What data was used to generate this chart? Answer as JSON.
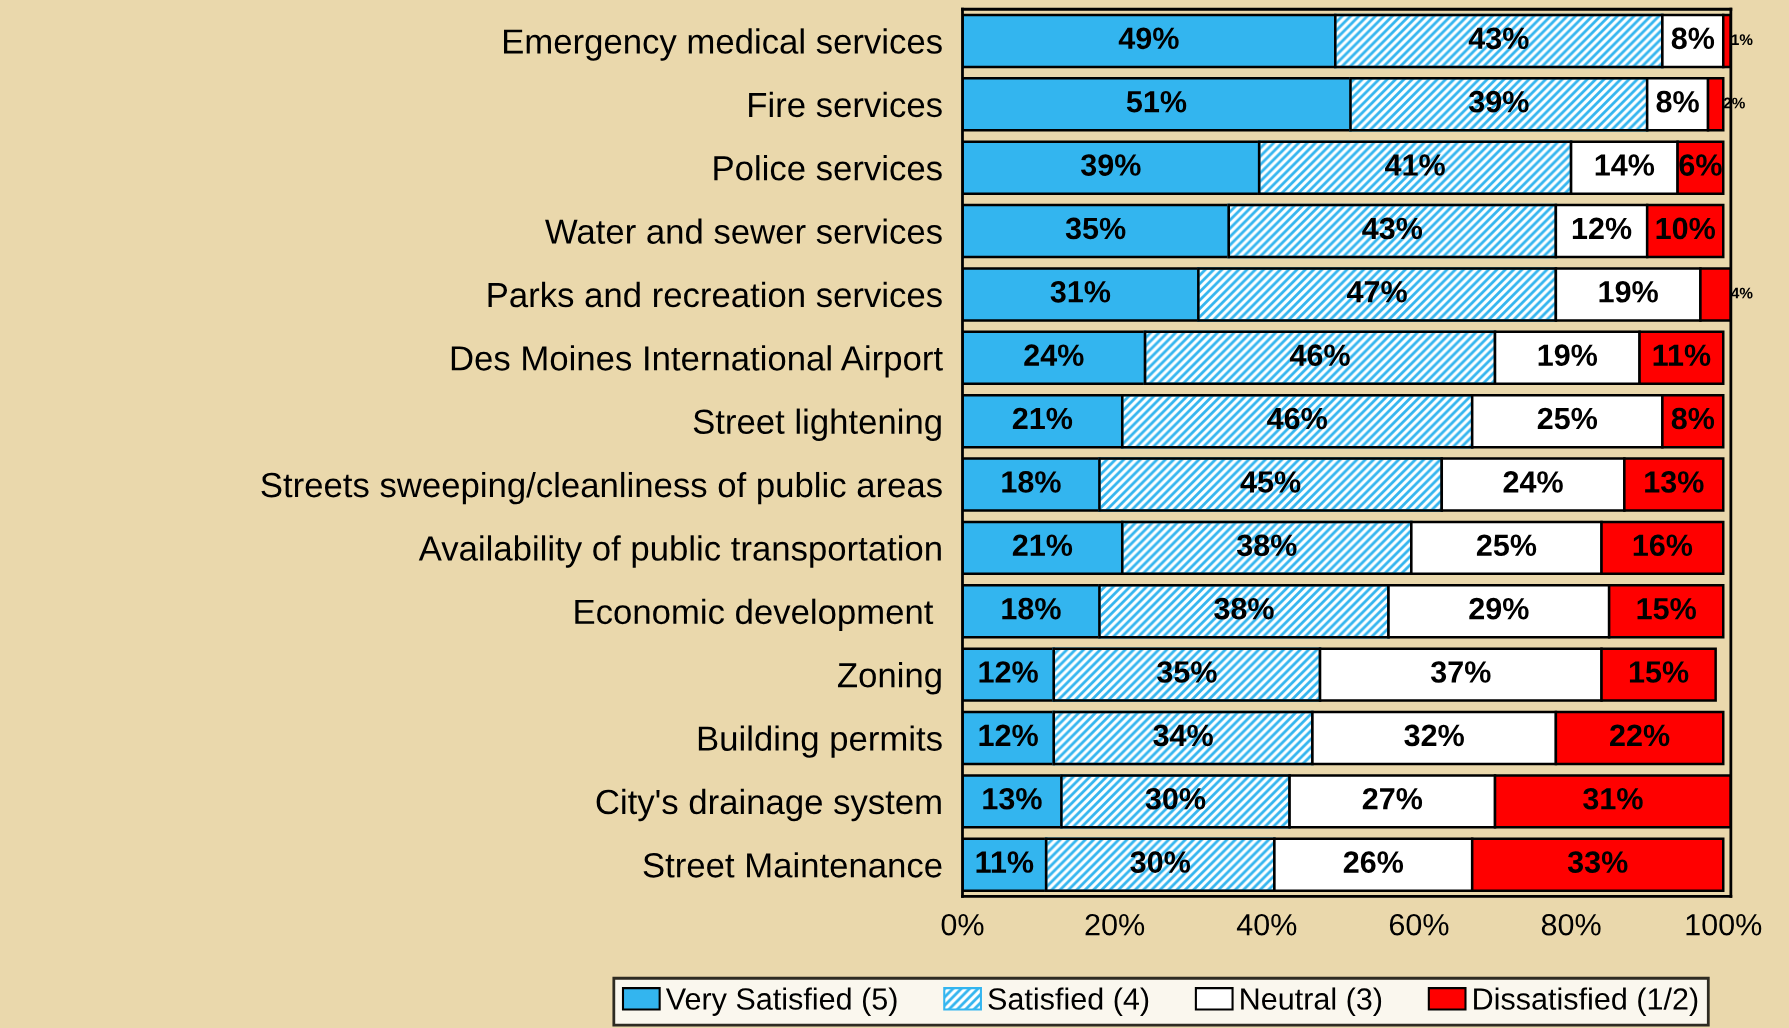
{
  "chart_data": {
    "type": "bar",
    "orientation": "horizontal",
    "stacked": true,
    "legend": "bottom",
    "grid": false,
    "categories": [
      "Emergency medical services",
      "Fire services",
      "Police services",
      "Water and sewer services",
      "Parks and recreation services",
      "Des Moines International Airport",
      "Street lightening",
      "Streets sweeping/cleanliness of public areas",
      "Availability of public transportation",
      "Economic development ",
      "Zoning",
      "Building permits",
      "City's drainage system",
      "Street Maintenance"
    ],
    "series": [
      {
        "name": "Very Satisfied (5)",
        "color": "#33b5ef",
        "values": [
          49,
          51,
          39,
          35,
          31,
          24,
          21,
          18,
          21,
          18,
          12,
          12,
          13,
          11
        ],
        "value_labels": [
          "49%",
          "51%",
          "39%",
          "35%",
          "31%",
          "24%",
          "21%",
          "18%",
          "21%",
          "18%",
          "12%",
          "12%",
          "13%",
          "11%"
        ]
      },
      {
        "name": "Satisfied (4)",
        "color": "#33b5ef",
        "values": [
          43,
          39,
          41,
          43,
          47,
          46,
          46,
          45,
          38,
          38,
          35,
          34,
          30,
          30
        ],
        "value_labels": [
          "43%",
          "39%",
          "41%",
          "43%",
          "47%",
          "46%",
          "46%",
          "45%",
          "38%",
          "38%",
          "35%",
          "34%",
          "30%",
          "30%"
        ]
      },
      {
        "name": "Neutral (3)",
        "color": "#ffffff",
        "values": [
          8,
          8,
          14,
          12,
          19,
          19,
          25,
          24,
          25,
          29,
          37,
          32,
          27,
          26
        ],
        "value_labels": [
          "8%",
          "8%",
          "14%",
          "12%",
          "19%",
          "19%",
          "25%",
          "24%",
          "25%",
          "29%",
          "37%",
          "32%",
          "27%",
          "26%"
        ]
      },
      {
        "name": "Dissatisfied (1/2)",
        "color": "#ff0000",
        "values": [
          1,
          2,
          6,
          10,
          4,
          11,
          8,
          13,
          16,
          15,
          15,
          22,
          31,
          33
        ],
        "value_labels": [
          "1%",
          "2%",
          "6%",
          "10%",
          "4%",
          "11%",
          "8%",
          "13%",
          "16%",
          "15%",
          "15%",
          "22%",
          "31%",
          "33%"
        ]
      }
    ],
    "xlim": [
      0,
      101
    ],
    "xticks": [
      {
        "value": 0,
        "label": "0%"
      },
      {
        "value": 20,
        "label": "20%"
      },
      {
        "value": 40,
        "label": "40%"
      },
      {
        "value": 60,
        "label": "60%"
      },
      {
        "value": 80,
        "label": "80%"
      },
      {
        "value": 100,
        "label": "100%"
      }
    ]
  }
}
